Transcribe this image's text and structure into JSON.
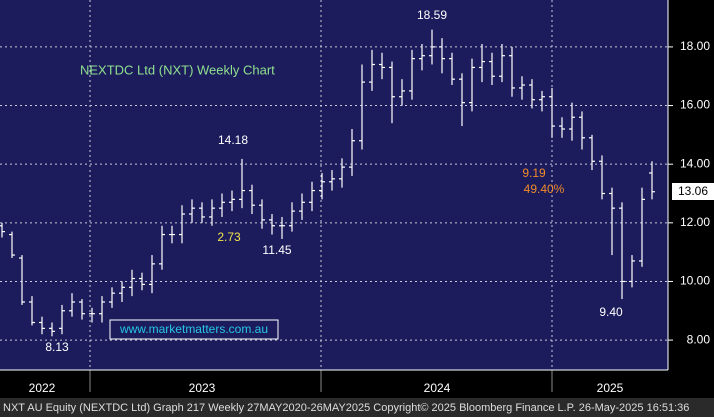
{
  "chart_data": {
    "type": "ohlc",
    "title": "NEXTDC Ltd (NXT) Weekly Chart",
    "categories": [
      null,
      null,
      null,
      null,
      null,
      null,
      null,
      null,
      null,
      null,
      null,
      null,
      null,
      null,
      null,
      null,
      null,
      null,
      null,
      null,
      null,
      null,
      null,
      null,
      null,
      null,
      null,
      null,
      null,
      null,
      null,
      null,
      null,
      null,
      null,
      null,
      null,
      null,
      null,
      null,
      null,
      null,
      null,
      null,
      null,
      null,
      null,
      null,
      null,
      null,
      null,
      null,
      null,
      null,
      null,
      null,
      null,
      null,
      null,
      null,
      null,
      null,
      null,
      null,
      null,
      null
    ],
    "open": [
      11.9,
      11.6,
      10.8,
      9.3,
      8.6,
      8.4,
      8.4,
      9.0,
      9.3,
      8.9,
      8.9,
      9.3,
      9.6,
      9.8,
      10.1,
      9.9,
      10.6,
      11.6,
      11.6,
      12.3,
      12.5,
      12.2,
      12.5,
      12.7,
      12.8,
      13.1,
      12.6,
      12.1,
      11.9,
      11.9,
      12.4,
      12.7,
      13.1,
      13.4,
      13.5,
      13.9,
      14.8,
      16.8,
      17.4,
      17.3,
      16.3,
      16.5,
      17.6,
      17.7,
      18.0,
      17.6,
      16.9,
      16.1,
      17.3,
      17.5,
      17.0,
      17.7,
      16.6,
      16.7,
      16.2,
      16.3,
      15.3,
      15.2,
      15.6,
      14.9,
      14.1,
      13.0,
      12.5,
      10.0,
      10.7,
      13.7
    ],
    "high": [
      12.0,
      11.7,
      10.9,
      9.5,
      8.8,
      8.6,
      9.2,
      9.6,
      9.4,
      9.1,
      9.5,
      9.8,
      10.0,
      10.4,
      10.3,
      10.9,
      11.9,
      11.9,
      12.6,
      12.8,
      12.7,
      12.8,
      13.0,
      13.1,
      14.18,
      13.3,
      12.8,
      12.3,
      12.2,
      12.7,
      13.0,
      13.4,
      13.7,
      13.8,
      14.2,
      15.2,
      17.4,
      17.9,
      17.8,
      17.5,
      16.9,
      17.9,
      18.1,
      18.59,
      18.3,
      17.8,
      17.1,
      17.6,
      18.1,
      17.8,
      18.1,
      18.0,
      17.0,
      16.9,
      16.5,
      16.6,
      15.6,
      16.1,
      15.8,
      15.0,
      14.3,
      13.2,
      12.7,
      10.9,
      13.2,
      14.1
    ],
    "low": [
      11.5,
      10.8,
      9.2,
      8.5,
      8.2,
      8.13,
      8.2,
      8.8,
      8.7,
      8.6,
      8.6,
      9.1,
      9.3,
      9.5,
      9.7,
      9.6,
      10.4,
      11.3,
      11.3,
      12.0,
      12.0,
      11.9,
      12.2,
      12.4,
      12.5,
      12.3,
      11.8,
      11.6,
      11.45,
      11.7,
      12.1,
      12.4,
      12.8,
      13.1,
      13.2,
      13.6,
      14.5,
      16.5,
      16.9,
      15.4,
      16.0,
      16.2,
      17.2,
      17.4,
      17.1,
      16.7,
      15.3,
      15.8,
      16.8,
      16.7,
      16.8,
      16.3,
      16.2,
      15.9,
      15.8,
      14.9,
      14.9,
      14.8,
      14.5,
      13.8,
      12.8,
      10.9,
      9.4,
      9.8,
      10.5,
      12.8
    ],
    "close": [
      11.7,
      10.9,
      9.3,
      8.6,
      8.4,
      8.3,
      9.0,
      9.3,
      8.9,
      8.9,
      9.3,
      9.6,
      9.8,
      10.1,
      9.9,
      10.6,
      11.6,
      11.6,
      12.3,
      12.5,
      12.2,
      12.5,
      12.7,
      12.8,
      13.1,
      12.6,
      12.1,
      11.9,
      11.9,
      12.4,
      12.7,
      13.1,
      13.4,
      13.5,
      13.9,
      14.8,
      16.8,
      17.4,
      17.3,
      16.3,
      16.5,
      17.6,
      17.7,
      18.0,
      17.6,
      16.9,
      16.1,
      17.3,
      17.5,
      17.0,
      17.7,
      16.6,
      16.7,
      16.2,
      16.3,
      15.3,
      15.2,
      15.6,
      14.9,
      14.1,
      13.0,
      12.5,
      10.0,
      10.7,
      12.8,
      13.06
    ],
    "color": "#ffffff",
    "xlim": [
      -0.2,
      66.6
    ],
    "xticks": [
      {
        "value": 4,
        "label": "2022"
      },
      {
        "value": 20,
        "label": "2023"
      },
      {
        "value": 43.5,
        "label": "2024"
      },
      {
        "value": 60.8,
        "label": "2025"
      }
    ],
    "xgrid": [
      8.8,
      31.9,
      55
    ],
    "ylim": [
      6.98,
      19.6
    ],
    "yticks": [
      {
        "value": 8,
        "label": "8.00"
      },
      {
        "value": 10,
        "label": "10.00"
      },
      {
        "value": 12,
        "label": "12.00"
      },
      {
        "value": 14,
        "label": "14.00"
      },
      {
        "value": 16,
        "label": "16.00"
      },
      {
        "value": 18,
        "label": "18.00"
      }
    ],
    "grid": true,
    "annotations": [
      "18.59",
      "14.18",
      "8.13",
      "11.45",
      "9.40",
      "2.73",
      "9.19",
      "49.40%"
    ],
    "watermark": "www.marketmatters.com.au",
    "footer": "NXT AU Equity (NEXTDC Ltd) Graph 217  Weekly 27MAY2020-26MAY2025  Copyright© 2025 Bloomberg Finance L.P.  26-May-2025 16:51:36"
  }
}
